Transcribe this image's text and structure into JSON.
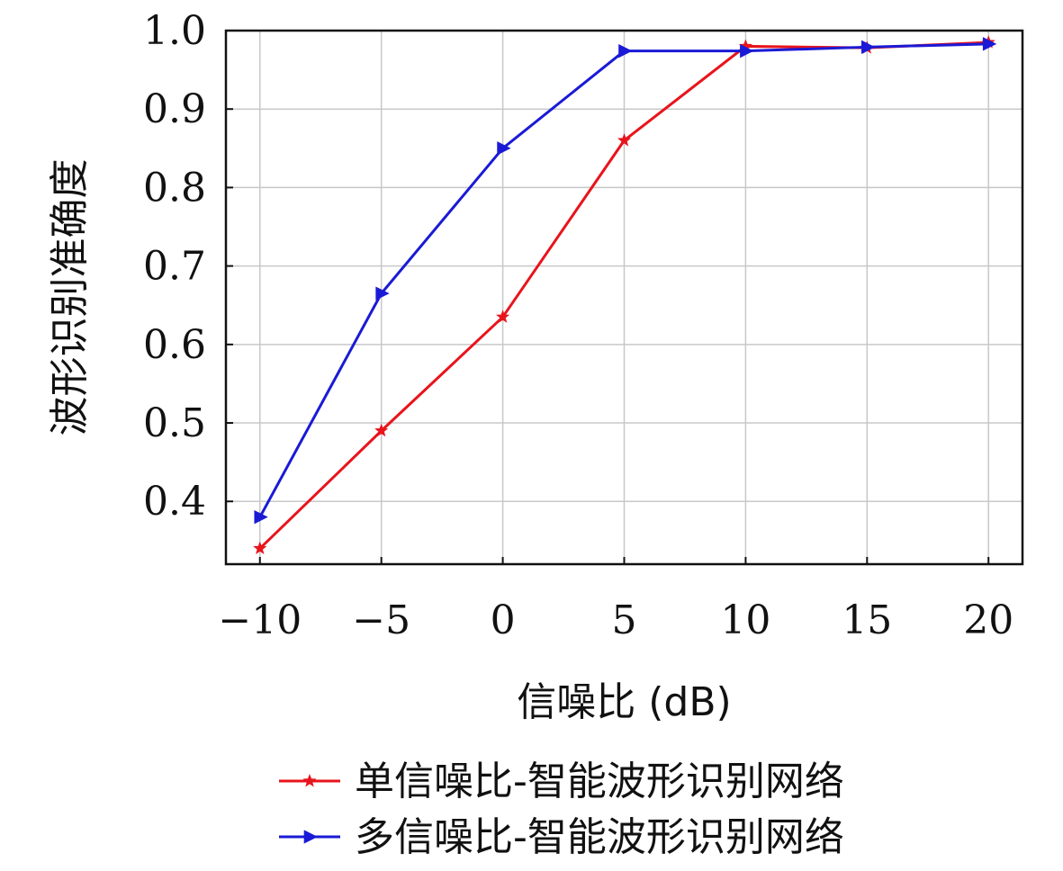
{
  "chart_data": {
    "type": "line",
    "xlabel": "信噪比 (dB)",
    "ylabel": "波形识别准确度",
    "x": [
      -10,
      -5,
      0,
      5,
      10,
      15,
      20
    ],
    "x_tick_labels": [
      "−10",
      "−5",
      "0",
      "5",
      "10",
      "15",
      "20"
    ],
    "y_ticks": [
      0.4,
      0.5,
      0.6,
      0.7,
      0.8,
      0.9,
      1.0
    ],
    "y_tick_labels": [
      "0.4",
      "0.5",
      "0.6",
      "0.7",
      "0.8",
      "0.9",
      "1.0"
    ],
    "xlim": [
      -11.4,
      21.4
    ],
    "ylim": [
      0.32,
      1.0
    ],
    "grid": true,
    "legend_position": "bottom",
    "series": [
      {
        "name": "单信噪比-智能波形识别网络",
        "color": "#e8141c",
        "marker": "star",
        "values": [
          0.34,
          0.49,
          0.635,
          0.86,
          0.98,
          0.978,
          0.985
        ]
      },
      {
        "name": "多信噪比-智能波形识别网络",
        "color": "#1a1ad6",
        "marker": "triangle-right",
        "values": [
          0.38,
          0.665,
          0.85,
          0.974,
          0.974,
          0.979,
          0.983
        ]
      }
    ]
  }
}
